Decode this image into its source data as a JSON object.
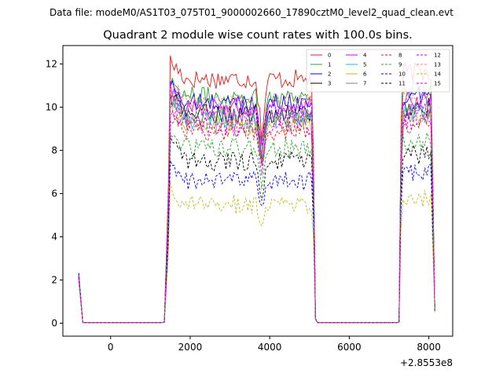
{
  "chart_data": {
    "type": "line",
    "suptitle": "Data file: modeM0/AS1T03_075T01_9000002660_17890cztM0_level2_quad_clean.evt",
    "title": "Quadrant 2 module wise count rates with 100.0s bins.",
    "xlabel": "",
    "ylabel": "",
    "x_offset_label": "+2.8553e8",
    "xlim": [
      -1200,
      8600
    ],
    "ylim": [
      -0.6,
      12.85
    ],
    "xticks": [
      0,
      2000,
      4000,
      6000,
      8000
    ],
    "xtick_labels": [
      "0",
      "2000",
      "4000",
      "6000",
      "8000"
    ],
    "yticks": [
      0,
      2,
      4,
      6,
      8,
      10,
      12
    ],
    "ytick_labels": [
      "0",
      "2",
      "4",
      "6",
      "8",
      "10",
      "12"
    ],
    "grid": false,
    "legend_position": "top-right",
    "segments": [
      {
        "start": -800,
        "rates_start": 2.2,
        "gap_to": 1350
      },
      {
        "start": 1400,
        "end": 5100
      },
      {
        "start": 5200,
        "gap_to": 7250
      },
      {
        "start": 7300,
        "end": 8150
      }
    ],
    "series": [
      {
        "name": "0",
        "color": "#e41a1c",
        "dash": "solid",
        "level": 11.3
      },
      {
        "name": "1",
        "color": "#2ca02c",
        "dash": "solid",
        "level": 10.5
      },
      {
        "name": "2",
        "color": "#0000ff",
        "dash": "solid",
        "level": 10.2
      },
      {
        "name": "3",
        "color": "#000000",
        "dash": "solid",
        "level": 9.7
      },
      {
        "name": "4",
        "color": "#cc00ff",
        "dash": "solid",
        "level": 10.0
      },
      {
        "name": "5",
        "color": "#17becf",
        "dash": "solid",
        "level": 9.4
      },
      {
        "name": "6",
        "color": "#bcbd22",
        "dash": "solid",
        "level": 9.2
      },
      {
        "name": "7",
        "color": "#808080",
        "dash": "solid",
        "level": 9.6
      },
      {
        "name": "8",
        "color": "#e41a1c",
        "dash": "dashed",
        "level": 8.9
      },
      {
        "name": "9",
        "color": "#2ca02c",
        "dash": "dashed",
        "level": 8.1
      },
      {
        "name": "10",
        "color": "#0000ff",
        "dash": "dashed",
        "level": 6.6
      },
      {
        "name": "11",
        "color": "#000000",
        "dash": "dashed",
        "level": 7.5
      },
      {
        "name": "12",
        "color": "#cc00ff",
        "dash": "dashed",
        "level": 9.5
      },
      {
        "name": "13",
        "color": "#ff7f7f",
        "dash": "dashed",
        "level": 10.2
      },
      {
        "name": "14",
        "color": "#bcbd22",
        "dash": "dashed",
        "level": 5.5
      },
      {
        "name": "15",
        "color": "#cc00ff",
        "dash": "dashed",
        "level": 9.1
      }
    ]
  }
}
